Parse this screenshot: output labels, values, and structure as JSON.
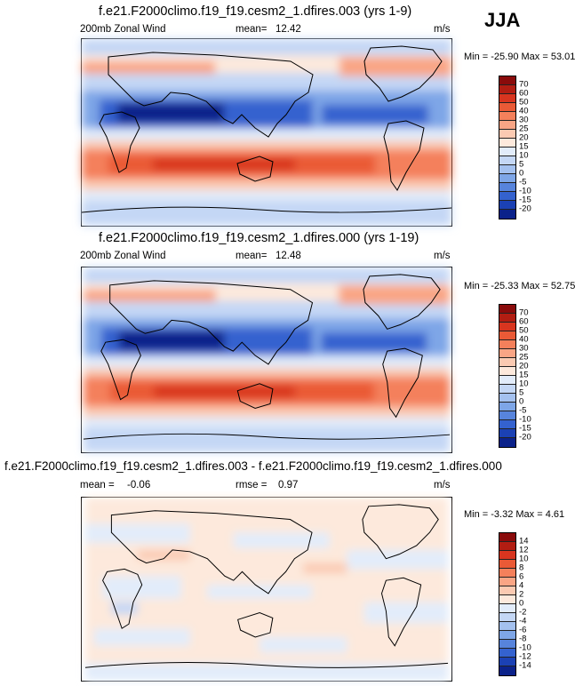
{
  "season": "JJA",
  "chart_data": [
    {
      "type": "heatmap",
      "title": "f.e21.F2000climo.f19_f19.cesm2_1.dfires.003 (yrs 1-9)",
      "variable": "200mb Zonal Wind",
      "stat_label": "mean=",
      "stat_value": "12.42",
      "units": "m/s",
      "min_max": "Min = -25.90 Max =  53.01",
      "colorbar_labels": [
        "70",
        "60",
        "50",
        "40",
        "30",
        "25",
        "20",
        "15",
        "10",
        "5",
        "0",
        "-5",
        "-10",
        "-15",
        "-20"
      ],
      "colors": [
        "#8a0b0b",
        "#b21d12",
        "#d8351f",
        "#ea5a36",
        "#f4805b",
        "#f9a585",
        "#fbcab2",
        "#fde9dc",
        "#e2ecfa",
        "#c4d7f5",
        "#a4c1ef",
        "#7ea6e7",
        "#5784dc",
        "#3462cf",
        "#1b41b4",
        "#0b228a"
      ]
    },
    {
      "type": "heatmap",
      "title": "f.e21.F2000climo.f19_f19.cesm2_1.dfires.000 (yrs 1-19)",
      "variable": "200mb Zonal Wind",
      "stat_label": "mean=",
      "stat_value": "12.48",
      "units": "m/s",
      "min_max": "Min = -25.33 Max =  52.75",
      "colorbar_labels": [
        "70",
        "60",
        "50",
        "40",
        "30",
        "25",
        "20",
        "15",
        "10",
        "5",
        "0",
        "-5",
        "-10",
        "-15",
        "-20"
      ],
      "colors": [
        "#8a0b0b",
        "#b21d12",
        "#d8351f",
        "#ea5a36",
        "#f4805b",
        "#f9a585",
        "#fbcab2",
        "#fde9dc",
        "#e2ecfa",
        "#c4d7f5",
        "#a4c1ef",
        "#7ea6e7",
        "#5784dc",
        "#3462cf",
        "#1b41b4",
        "#0b228a"
      ]
    },
    {
      "type": "heatmap",
      "title": "f.e21.F2000climo.f19_f19.cesm2_1.dfires.003 - f.e21.F2000climo.f19_f19.cesm2_1.dfires.000",
      "stat_label": "mean =",
      "stat_value": "-0.06",
      "rmse_label": "rmse =",
      "rmse_value": "0.97",
      "units": "m/s",
      "min_max": "Min =  -3.32 Max =   4.61",
      "colorbar_labels": [
        "14",
        "12",
        "10",
        "8",
        "6",
        "4",
        "2",
        "0",
        "-2",
        "-4",
        "-6",
        "-8",
        "-10",
        "-12",
        "-14"
      ],
      "colors": [
        "#8a0b0b",
        "#b21d12",
        "#d8351f",
        "#ea5a36",
        "#f4805b",
        "#f9a585",
        "#fbcab2",
        "#fde9dc",
        "#e2ecfa",
        "#c4d7f5",
        "#a4c1ef",
        "#7ea6e7",
        "#5784dc",
        "#3462cf",
        "#1b41b4",
        "#0b228a"
      ]
    }
  ]
}
